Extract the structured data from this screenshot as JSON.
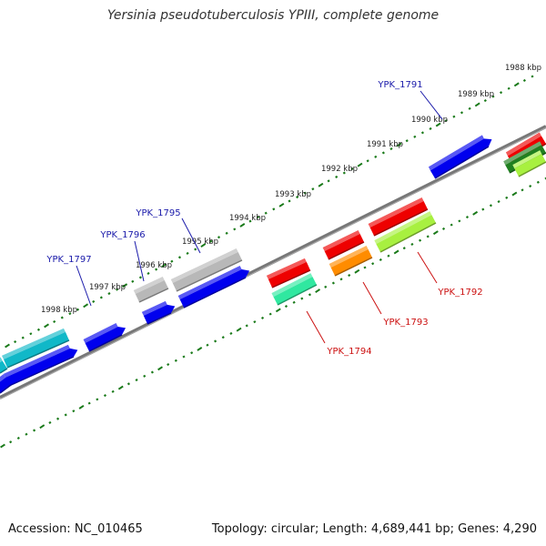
{
  "title": "Yersinia pseudotuberculosis YPIII, complete genome",
  "footer": {
    "accession": "Accession: NC_010465",
    "topology": "Topology: circular; Length: 4,689,441 bp; Genes: 4,290"
  },
  "ruler_labels": [
    "1988 kbp",
    "1989 kbp",
    "1990 kbp",
    "1991 kbp",
    "1992 kbp",
    "1993 kbp",
    "1994 kbp",
    "1995 kbp",
    "1996 kbp",
    "1997 kbp",
    "1998 kbp"
  ],
  "gene_labels": {
    "forward": [
      "YPK_1791",
      "YPK_1795",
      "YPK_1796",
      "YPK_1797"
    ],
    "reverse": [
      "YPK_1792",
      "YPK_1793",
      "YPK_1794"
    ]
  },
  "colors": {
    "forward_label": "#1a1aaa",
    "reverse_label": "#cc1111",
    "backbone": "#777777",
    "tick": "#1a7a1a",
    "blue_gene": "#0000ee",
    "red_gene": "#ee0000",
    "gray_gene": "#b8b8b8",
    "cyan_gene": "#10b8c8",
    "orange_gene": "#ff8c00",
    "lime_gene": "#a8f040",
    "mint_gene": "#30e8a0",
    "green_gene": "#208020"
  }
}
